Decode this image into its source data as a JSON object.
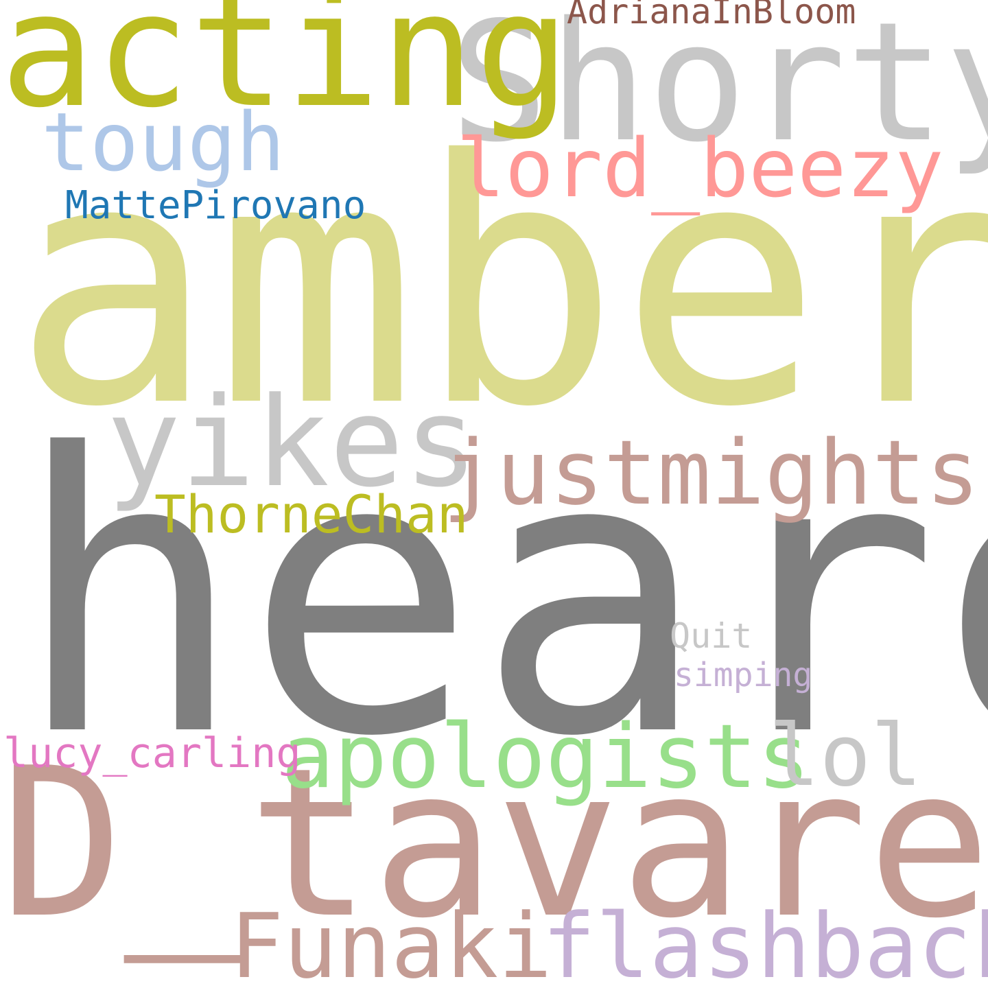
{
  "words": [
    {
      "key": "heard",
      "text": "heard",
      "color": "#7f7f7f"
    },
    {
      "key": "amber",
      "text": "amber",
      "color": "#dbdb8d"
    },
    {
      "key": "dtavarez",
      "text": "D_tavarez",
      "color": "#c49c94"
    },
    {
      "key": "shorty",
      "text": "Shorty",
      "color": "#c7c7c7"
    },
    {
      "key": "acting",
      "text": "acting",
      "color": "#bcbd22"
    },
    {
      "key": "yikes",
      "text": "yikes",
      "color": "#c7c7c7"
    },
    {
      "key": "justmights",
      "text": "justmights",
      "color": "#c49c94"
    },
    {
      "key": "flashbacks",
      "text": "flashbacks",
      "color": "#c5b0d5"
    },
    {
      "key": "funaki",
      "text": "Funaki",
      "color": "#c49c94"
    },
    {
      "key": "apologists",
      "text": "apologists",
      "color": "#98df8a"
    },
    {
      "key": "lord",
      "text": "lord_beezy",
      "color": "#ff9896"
    },
    {
      "key": "tough",
      "text": "tough",
      "color": "#aec7e8"
    },
    {
      "key": "lol",
      "text": "lol",
      "color": "#c7c7c7"
    },
    {
      "key": "thorne",
      "text": "ThorneChan",
      "color": "#bcbd22"
    },
    {
      "key": "matte",
      "text": "MattePirovano",
      "color": "#1f77b4"
    },
    {
      "key": "adriana",
      "text": "AdrianaInBloom",
      "color": "#8c564b"
    },
    {
      "key": "lucy",
      "text": "lucy_carling",
      "color": "#e377c2"
    },
    {
      "key": "quit",
      "text": "Quit",
      "color": "#c7c7c7"
    },
    {
      "key": "simping",
      "text": "simping",
      "color": "#c5b0d5"
    }
  ]
}
